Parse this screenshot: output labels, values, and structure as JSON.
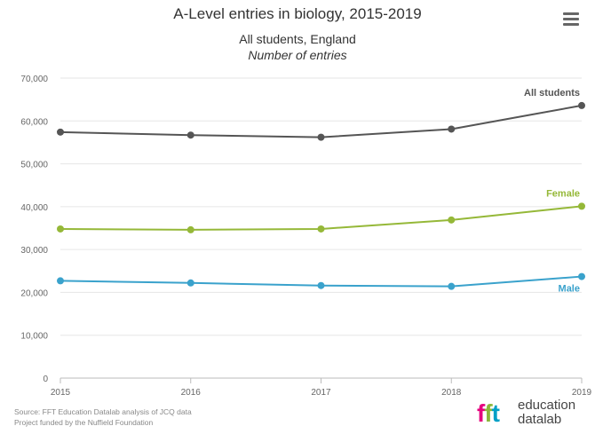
{
  "header": {
    "title": "A-Level entries in biology, 2015-2019",
    "subtitle": "All students, England",
    "subtitle2": "Number of entries"
  },
  "footer": {
    "source": "Source: FFT Education Datalab analysis of JCQ data",
    "funding": "Project funded by the Nuffield Foundation"
  },
  "logo": {
    "mark_f1": "f",
    "mark_f2": "f",
    "mark_t": "t",
    "word1": "education",
    "word2": "datalab"
  },
  "chart_data": {
    "type": "line",
    "title": "A-Level entries in biology, 2015-2019",
    "x": [
      2015,
      2016,
      2017,
      2018,
      2019
    ],
    "x_tick_labels": [
      "2015",
      "2016",
      "2017",
      "2018",
      "2019"
    ],
    "ylim": [
      0,
      70000
    ],
    "y_ticks": [
      0,
      10000,
      20000,
      30000,
      40000,
      50000,
      60000,
      70000
    ],
    "y_tick_labels": [
      "0",
      "10,000",
      "20,000",
      "30,000",
      "40,000",
      "50,000",
      "60,000",
      "70,000"
    ],
    "grid": true,
    "series": [
      {
        "name": "All students",
        "color": "#555555",
        "values": [
          57400,
          56700,
          56200,
          58100,
          63600
        ]
      },
      {
        "name": "Female",
        "color": "#95b838",
        "values": [
          34800,
          34600,
          34800,
          36900,
          40100
        ]
      },
      {
        "name": "Male",
        "color": "#3aa2cc",
        "values": [
          22700,
          22200,
          21600,
          21400,
          23700
        ]
      }
    ]
  }
}
